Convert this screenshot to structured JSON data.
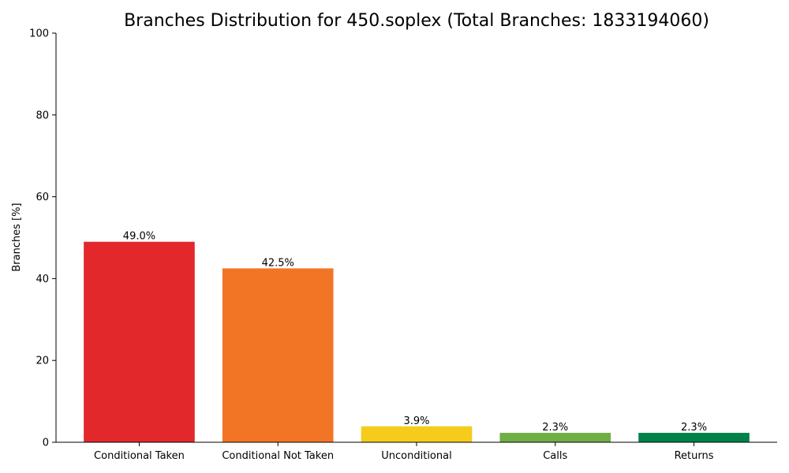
{
  "chart_data": {
    "type": "bar",
    "title": "Branches Distribution for 450.soplex (Total Branches: 1833194060)",
    "xlabel": "",
    "ylabel": "Branches [%]",
    "ylim": [
      0,
      100
    ],
    "yticks": [
      0,
      20,
      40,
      60,
      80,
      100
    ],
    "categories": [
      "Conditional Taken",
      "Conditional Not Taken",
      "Unconditional",
      "Calls",
      "Returns"
    ],
    "values": [
      49.0,
      42.5,
      3.9,
      2.3,
      2.3
    ],
    "data_labels": [
      "49.0%",
      "42.5%",
      "3.9%",
      "2.3%",
      "2.3%"
    ],
    "colors": [
      "#e2282b",
      "#f27526",
      "#f5cc1c",
      "#6eae45",
      "#008148"
    ],
    "grid": false,
    "legend": "none"
  }
}
